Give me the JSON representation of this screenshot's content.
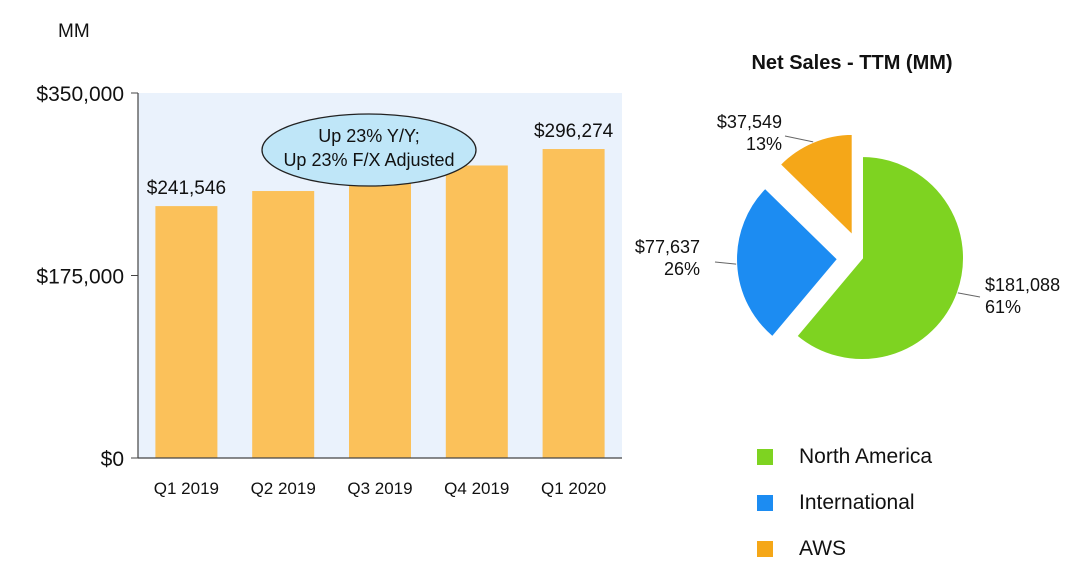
{
  "chart_data": [
    {
      "type": "bar",
      "title": "",
      "unit_label": "MM",
      "categories": [
        "Q1 2019",
        "Q2 2019",
        "Q3 2019",
        "Q4 2019",
        "Q1 2020"
      ],
      "values": [
        241546,
        256000,
        265500,
        280500,
        296274
      ],
      "value_labels": [
        "$241,546",
        "",
        "",
        "",
        "$296,274"
      ],
      "ylim": [
        0,
        350000
      ],
      "y_ticks": [
        "$0",
        "$175,000",
        "$350,000"
      ],
      "y_tick_values": [
        0,
        175000,
        350000
      ],
      "xlabel": "",
      "ylabel": "",
      "grid": false,
      "annotation": [
        "Up 23% Y/Y;",
        "Up 23% F/X Adjusted"
      ],
      "colors": {
        "bar": "#FBC15A",
        "plot_bg": "#EAF2FC",
        "axis": "#444444",
        "callout": "#BFE6F8"
      }
    },
    {
      "type": "pie",
      "title": "Net Sales - TTM (MM)",
      "slices": [
        {
          "name": "North America",
          "value": 181088,
          "label": "$181,088",
          "percent": "61%",
          "color": "#7ED321",
          "exploded": false
        },
        {
          "name": "International",
          "value": 77637,
          "label": "$77,637",
          "percent": "26%",
          "color": "#1C8CF2",
          "exploded": true
        },
        {
          "name": "AWS",
          "value": 37549,
          "label": "$37,549",
          "percent": "13%",
          "color": "#F5A718",
          "exploded": true
        }
      ],
      "legend_position": "bottom"
    }
  ]
}
